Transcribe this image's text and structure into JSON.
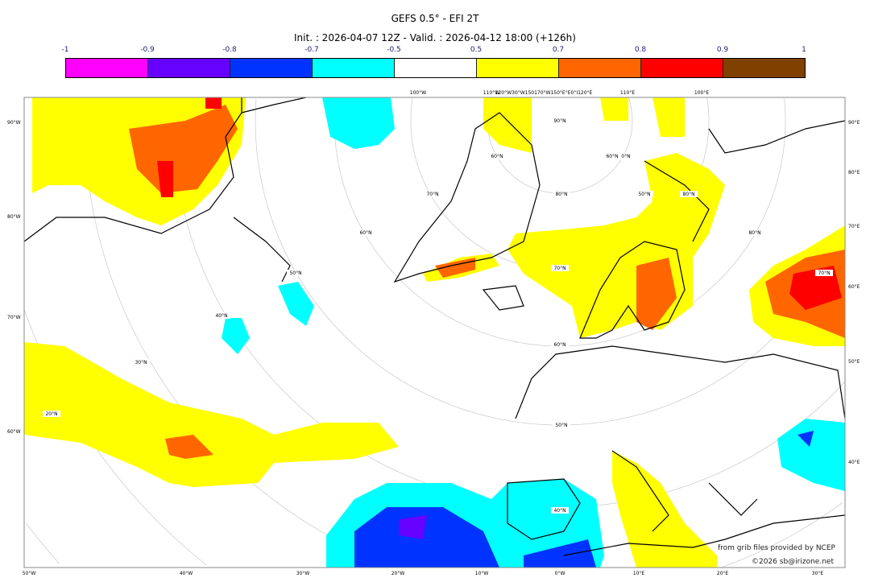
{
  "header": {
    "title": "GEFS 0.5° - EFI 2T",
    "subtitle": "Init. : 2026-04-07 12Z - Valid. : 2026-04-12 18:00 (+126h)"
  },
  "colorbar": {
    "ticks": [
      "-1",
      "-0.9",
      "-0.8",
      "-0.7",
      "-0.5",
      "0.5",
      "0.7",
      "0.8",
      "0.9",
      "1"
    ],
    "colors": [
      "#ff00ff",
      "#6600ff",
      "#0033ff",
      "#00ffff",
      "#ffffff",
      "#ffff00",
      "#ff6600",
      "#ff0000",
      "#804000"
    ]
  },
  "map": {
    "left_labels": [
      "90°W",
      "80°W",
      "70°W",
      "60°W"
    ],
    "right_labels": [
      "90°E",
      "80°E",
      "70°E",
      "60°E",
      "50°E",
      "40°E"
    ],
    "bottom_labels": [
      "50°W",
      "40°W",
      "30°W",
      "20°W",
      "10°W",
      "0°W",
      "10°E",
      "20°E",
      "30°E"
    ],
    "top_labels": [
      "100°W",
      "110°W",
      "120°W30°W150170°W150°E°E0°I120°E",
      "110°E",
      "100°E"
    ],
    "inner_labels": [
      "90°N",
      "80°N",
      "70°N",
      "60°N",
      "50°N",
      "40°N",
      "30°N",
      "20°N",
      "70°N",
      "60°N",
      "50°N",
      "40°N",
      "60°N",
      "70°N",
      "80°N",
      "80°N",
      "70°N",
      "60°N",
      "50°N"
    ]
  },
  "credits": {
    "source": "from grib files provided by NCEP",
    "copyright": "©2026 sb@irizone.net"
  }
}
